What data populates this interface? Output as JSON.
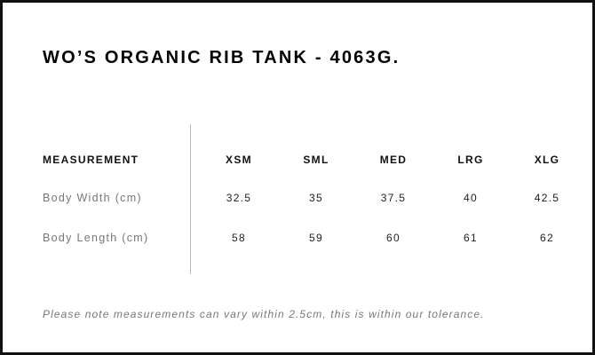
{
  "title": "WO’S ORGANIC RIB TANK - 4063G.",
  "table": {
    "header_label": "MEASUREMENT",
    "sizes": [
      "XSM",
      "SML",
      "MED",
      "LRG",
      "XLG"
    ],
    "rows": [
      {
        "label": "Body Width (cm)",
        "values": [
          "32.5",
          "35",
          "37.5",
          "40",
          "42.5"
        ]
      },
      {
        "label": "Body Length (cm)",
        "values": [
          "58",
          "59",
          "60",
          "61",
          "62"
        ]
      }
    ]
  },
  "note": "Please note measurements can vary within 2.5cm, this is within our tolerance."
}
